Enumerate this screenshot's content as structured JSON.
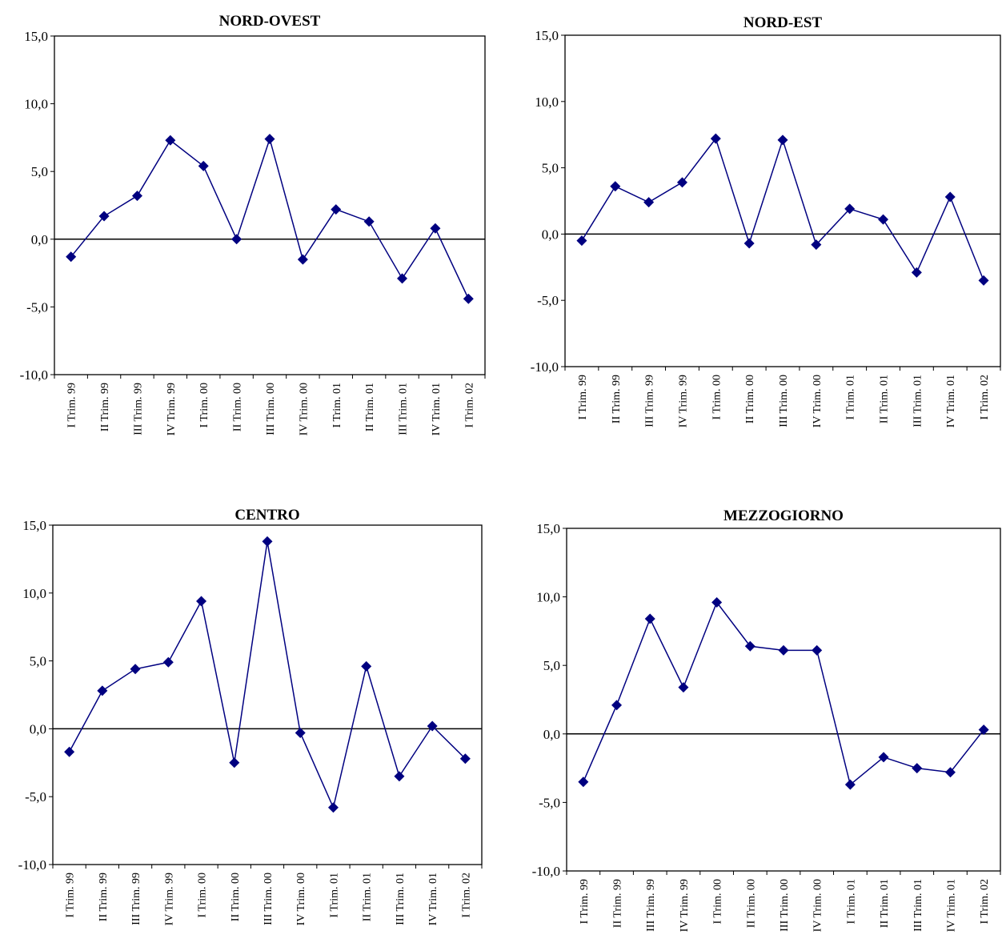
{
  "chart_data": [
    {
      "type": "line",
      "title": "NORD-OVEST",
      "categories": [
        "I Trim. 99",
        "II Trim. 99",
        "III Trim. 99",
        "IV Trim. 99",
        "I Trim. 00",
        "II Trim. 00",
        "III Trim. 00",
        "IV Trim. 00",
        "I Trim. 01",
        "II Trim. 01",
        "III Trim. 01",
        "IV Trim. 01",
        "I Trim. 02"
      ],
      "series": [
        {
          "values": [
            -1.3,
            1.7,
            3.2,
            7.3,
            5.4,
            0.0,
            7.4,
            -1.5,
            2.2,
            1.3,
            -2.9,
            0.8,
            -4.4
          ]
        }
      ],
      "ylim": [
        -10,
        15
      ],
      "yticks": [
        "15,0",
        "10,0",
        "5,0",
        "0,0",
        "-5,0",
        "-10,0"
      ],
      "color": "#000080",
      "grid": false
    },
    {
      "type": "line",
      "title": "NORD-EST",
      "categories": [
        "I Trim. 99",
        "II Trim. 99",
        "III Trim. 99",
        "IV Trim. 99",
        "I Trim. 00",
        "II Trim. 00",
        "III Trim. 00",
        "IV Trim. 00",
        "I Trim. 01",
        "II Trim. 01",
        "III Trim. 01",
        "IV Trim. 01",
        "I Trim. 02"
      ],
      "series": [
        {
          "values": [
            -0.5,
            3.6,
            2.4,
            3.9,
            7.2,
            -0.7,
            7.1,
            -0.8,
            1.9,
            1.1,
            -2.9,
            2.8,
            -3.5
          ]
        }
      ],
      "ylim": [
        -10,
        15
      ],
      "yticks": [
        "15,0",
        "10,0",
        "5,0",
        "0,0",
        "-5,0",
        "-10,0"
      ],
      "color": "#000080",
      "grid": false
    },
    {
      "type": "line",
      "title": "CENTRO",
      "categories": [
        "I Trim. 99",
        "II Trim. 99",
        "III Trim. 99",
        "IV Trim. 99",
        "I Trim. 00",
        "II Trim. 00",
        "III Trim. 00",
        "IV Trim. 00",
        "I Trim. 01",
        "II Trim. 01",
        "III Trim. 01",
        "IV Trim. 01",
        "I Trim. 02"
      ],
      "series": [
        {
          "values": [
            -1.7,
            2.8,
            4.4,
            4.9,
            9.4,
            -2.5,
            13.8,
            -0.3,
            -5.8,
            4.6,
            -3.5,
            0.2,
            -2.2
          ]
        }
      ],
      "ylim": [
        -10,
        15
      ],
      "yticks": [
        "15,0",
        "10,0",
        "5,0",
        "0,0",
        "-5,0",
        "-10,0"
      ],
      "color": "#000080",
      "grid": false
    },
    {
      "type": "line",
      "title": "MEZZOGIORNO",
      "categories": [
        "I Trim. 99",
        "II Trim. 99",
        "III Trim. 99",
        "IV Trim. 99",
        "I Trim. 00",
        "II Trim. 00",
        "III Trim. 00",
        "IV Trim. 00",
        "I Trim. 01",
        "II Trim. 01",
        "III Trim. 01",
        "IV Trim. 01",
        "I Trim. 02"
      ],
      "series": [
        {
          "values": [
            -3.5,
            2.1,
            8.4,
            3.4,
            9.6,
            6.4,
            6.1,
            6.1,
            -3.7,
            -1.7,
            -2.5,
            -2.8,
            0.3
          ]
        }
      ],
      "ylim": [
        -10,
        15
      ],
      "yticks": [
        "15,0",
        "10,0",
        "5,0",
        "0,0",
        "-5,0",
        "-10,0"
      ],
      "color": "#000080",
      "grid": false
    }
  ]
}
